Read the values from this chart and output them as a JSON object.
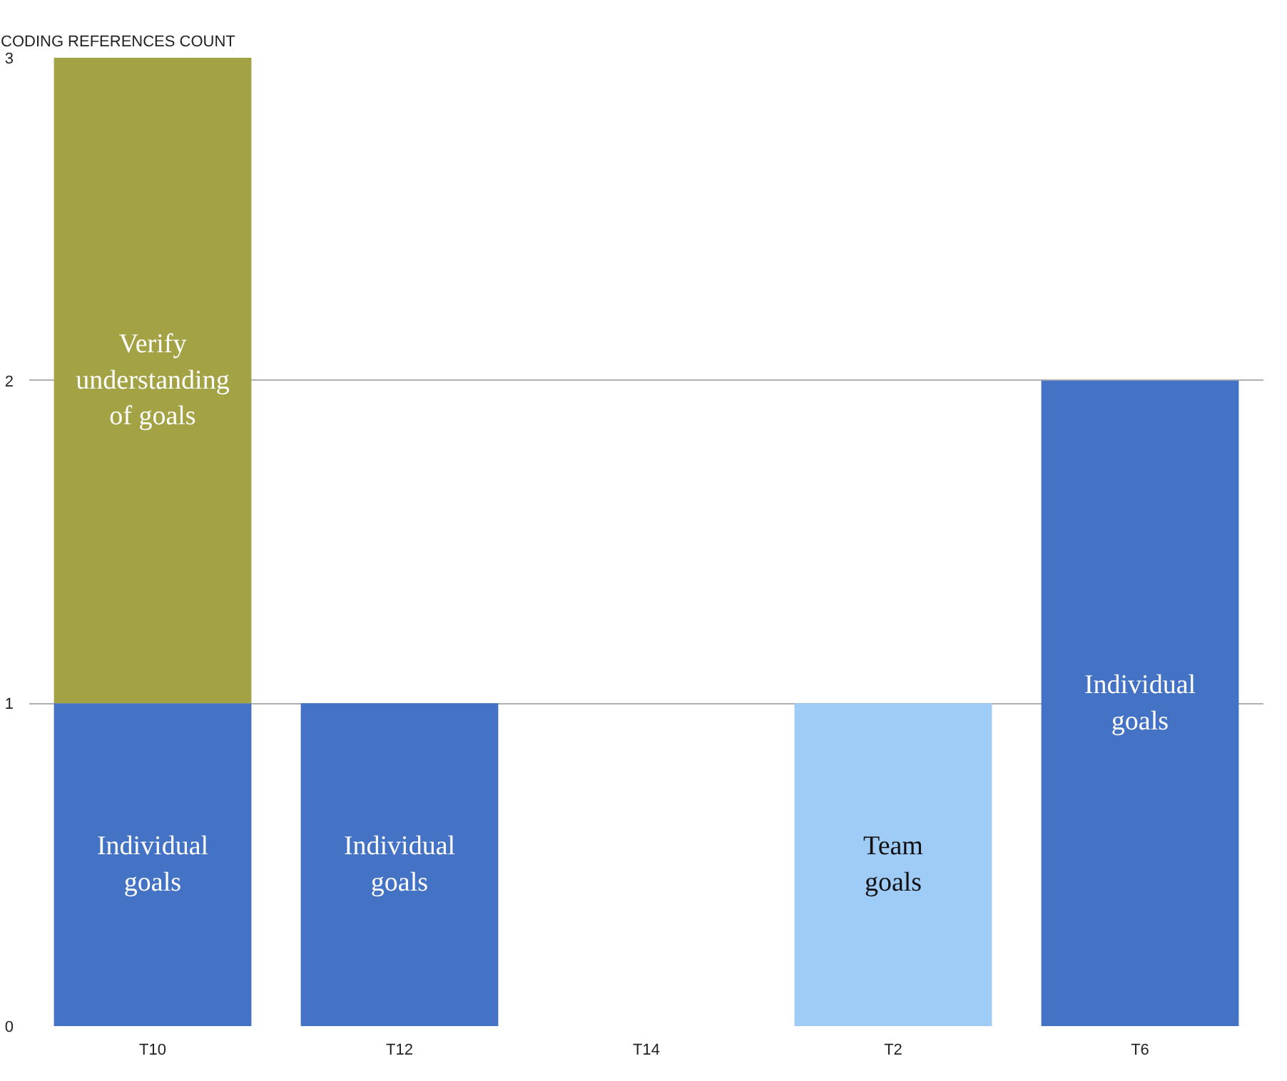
{
  "chart_data": {
    "type": "bar",
    "stacked": true,
    "ylabel": "CODING REFERENCES COUNT",
    "categories": [
      "T10",
      "T12",
      "T14",
      "T2",
      "T6"
    ],
    "series": [
      {
        "color": "#4472c4",
        "values": [
          1,
          1,
          null,
          null,
          2
        ],
        "value_labels": [
          "Individual goals",
          "Individual goals",
          null,
          null,
          "Individual goals"
        ]
      },
      {
        "color": "#a3a346",
        "values": [
          2,
          null,
          null,
          null,
          null
        ],
        "value_labels": [
          "Verify understanding of goals",
          null,
          null,
          null,
          null
        ]
      },
      {
        "color": "#9fcbf7",
        "values": [
          null,
          null,
          null,
          1,
          null
        ],
        "value_labels": [
          null,
          null,
          null,
          "Team goals",
          null
        ]
      }
    ],
    "ylim": [
      0,
      3
    ],
    "yticks": [
      0,
      1,
      2,
      3
    ],
    "grid": "y",
    "legend": false
  }
}
